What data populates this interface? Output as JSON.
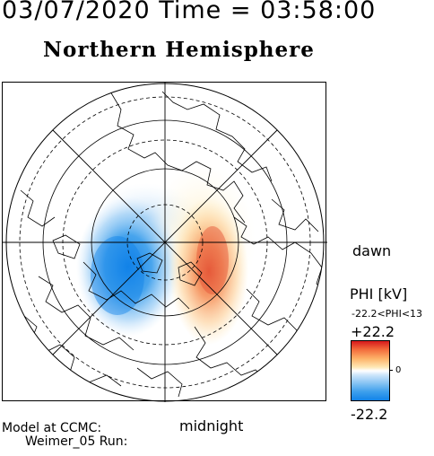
{
  "header": {
    "datetime": "03/07/2020 Time = 03:58:00",
    "hemisphere": "Northern Hemisphere"
  },
  "plot": {
    "dawn_label": "dawn",
    "midnight_label": "midnight"
  },
  "colorbar": {
    "title": "PHI [kV]",
    "range_label": "-22.2<PHI<13",
    "max_label": "+22.2",
    "zero_label": "0",
    "min_label": "-22.2",
    "colors": {
      "positive": "#d7191c",
      "neutral": "#ffffff",
      "negative": "#1182e8"
    }
  },
  "footer": {
    "model_line": "Model at CCMC:",
    "run_line": "Weimer_05 Run:"
  },
  "chart_data": {
    "type": "heatmap",
    "title": "Northern Hemisphere",
    "subtitle": "03/07/2020 Time = 03:58:00",
    "quantity": "PHI [kV]",
    "value_range": [
      -22.2,
      13
    ],
    "colorbar_range": [
      -22.2,
      22.2
    ],
    "cells": [
      {
        "mlt": 18.3,
        "lat": 70,
        "phi": -22.2
      },
      {
        "mlt": 18.0,
        "lat": 78,
        "phi": -16
      },
      {
        "mlt": 17.0,
        "lat": 66,
        "phi": -14
      },
      {
        "mlt": 19.5,
        "lat": 74,
        "phi": -15
      },
      {
        "mlt": 21.0,
        "lat": 72,
        "phi": -8
      },
      {
        "mlt": 15.5,
        "lat": 73,
        "phi": -9
      },
      {
        "mlt": 12.5,
        "lat": 75,
        "phi": -4
      },
      {
        "mlt": 6.3,
        "lat": 72,
        "phi": 13
      },
      {
        "mlt": 5.5,
        "lat": 67,
        "phi": 10
      },
      {
        "mlt": 7.5,
        "lat": 78,
        "phi": 9
      },
      {
        "mlt": 4.0,
        "lat": 70,
        "phi": 8
      },
      {
        "mlt": 9.5,
        "lat": 74,
        "phi": 5
      },
      {
        "mlt": 2.5,
        "lat": 73,
        "phi": 4
      },
      {
        "mlt": 0.0,
        "lat": 80,
        "phi": 0
      }
    ]
  }
}
